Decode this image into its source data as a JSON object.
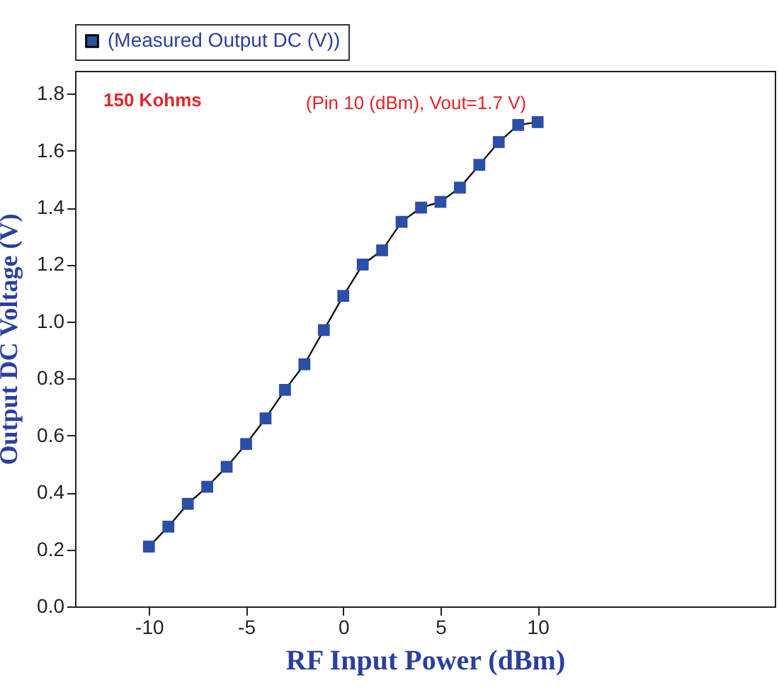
{
  "chart_data": {
    "type": "line",
    "xlabel": "RF Input Power (dBm)",
    "ylabel": "Output DC Voltage (V)",
    "x": [
      -10,
      -9,
      -8,
      -7,
      -6,
      -5,
      -4,
      -3,
      -2,
      -1,
      0,
      1,
      2,
      3,
      4,
      5,
      6,
      7,
      8,
      9,
      10
    ],
    "series": [
      {
        "name": "(Measured Output DC (V))",
        "color": "#2b4ea6",
        "values": [
          0.21,
          0.28,
          0.36,
          0.42,
          0.49,
          0.57,
          0.66,
          0.76,
          0.85,
          0.97,
          1.09,
          1.2,
          1.25,
          1.35,
          1.4,
          1.42,
          1.47,
          1.55,
          1.63,
          1.69,
          1.7
        ]
      }
    ],
    "xlim": [
      -13.8,
      22.2
    ],
    "ylim": [
      0,
      1.88
    ],
    "xticks": [
      -10,
      -5,
      0,
      5,
      10
    ],
    "yticks": [
      {
        "value": 0,
        "label": "0.0"
      },
      {
        "value": 0.2,
        "label": "0.2"
      },
      {
        "value": 0.4,
        "label": "0.4"
      },
      {
        "value": 0.6,
        "label": "0.6"
      },
      {
        "value": 0.8,
        "label": "0.8"
      },
      {
        "value": 1,
        "label": "1.0"
      },
      {
        "value": 1.2,
        "label": "1.2"
      },
      {
        "value": 1.4,
        "label": "1.4"
      },
      {
        "value": 1.6,
        "label": "1.6"
      },
      {
        "value": 1.8,
        "label": "1.8"
      }
    ],
    "annotations": [
      "150 Kohms",
      {
        "text": "(Pin 10 (dBm), Vout=1.7 V)",
        "x": 10,
        "y": 1.7
      }
    ],
    "legend": "top",
    "marker": "square",
    "line_style": "solid",
    "grid": false
  }
}
